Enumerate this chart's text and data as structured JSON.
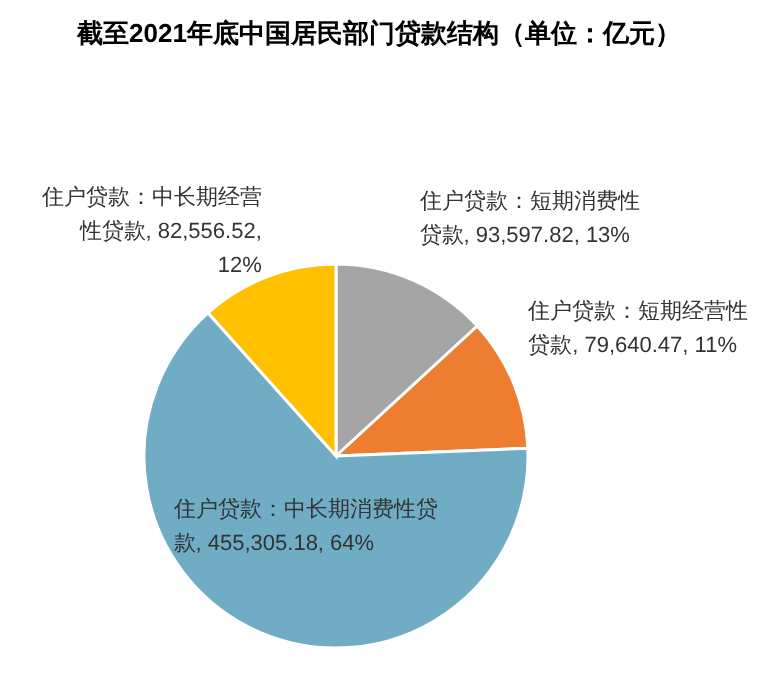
{
  "chart_data": {
    "type": "pie",
    "title": "截至2021年底中国居民部门贷款结构（单位：亿元）",
    "categories": [
      "住户贷款：短期消费性贷款",
      "住户贷款：短期经营性贷款",
      "住户贷款：中长期消费性贷款",
      "住户贷款：中长期经营性贷款"
    ],
    "values": [
      93597.82,
      79640.47,
      455305.18,
      82556.52
    ],
    "colors": [
      "#a5a5a5",
      "#ed7d31",
      "#70adc5",
      "#ffc000"
    ],
    "value_labels": [
      "93,597.82, 13%",
      "79,640.47, 11%",
      "455,305.18, 64%",
      "82,556.52, 12%"
    ]
  }
}
